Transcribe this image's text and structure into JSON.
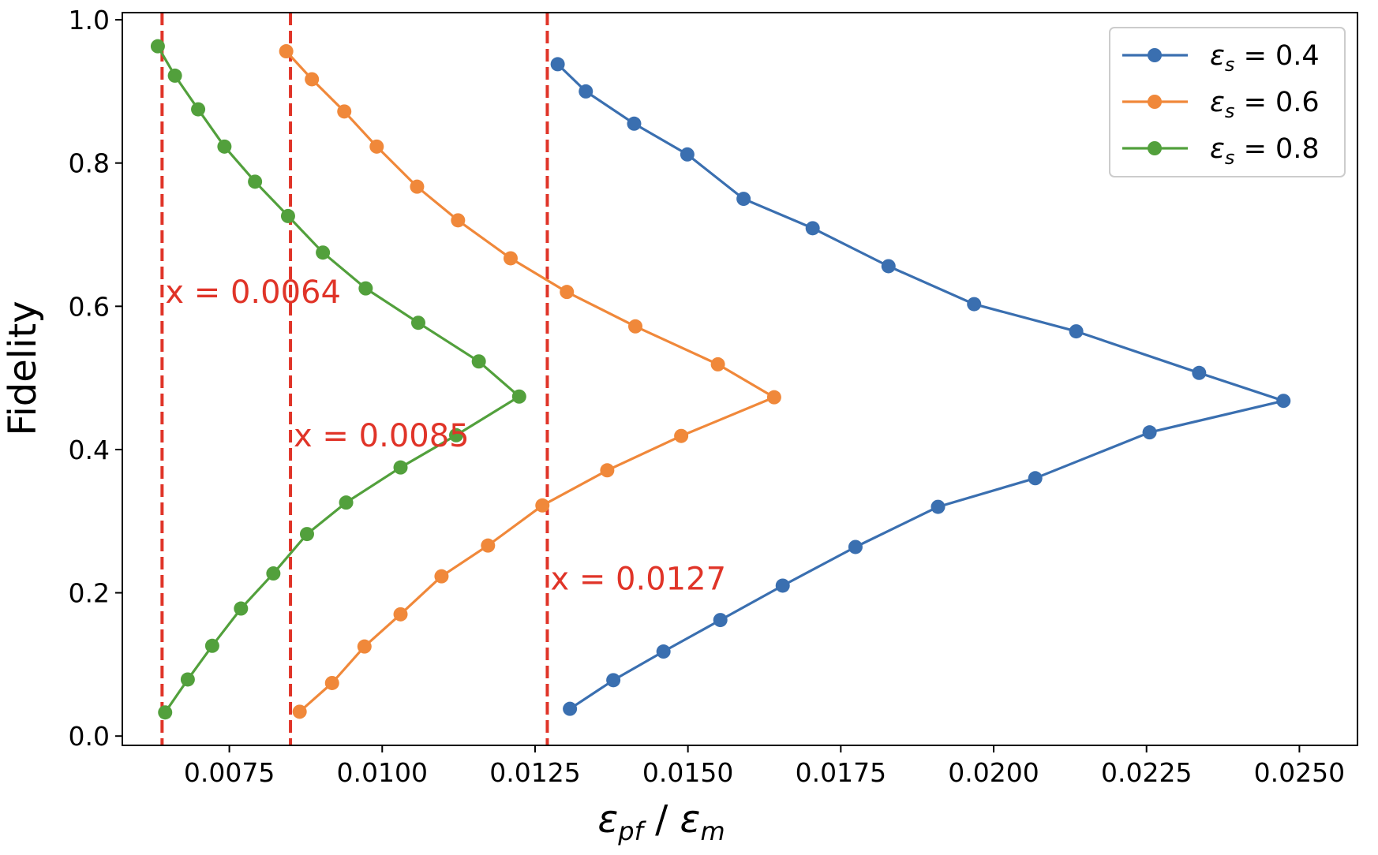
{
  "chart_data": {
    "type": "line",
    "title": "",
    "xlabel": "εpf / εm",
    "xlabel_parts": {
      "sym1": "ε",
      "sub1": "pf",
      "sep": " / ",
      "sym2": "ε",
      "sub2": "m"
    },
    "ylabel": "Fidelity",
    "xlim": [
      0.00575,
      0.02595
    ],
    "ylim": [
      -0.013,
      1.01
    ],
    "xticks": [
      0.0075,
      0.01,
      0.0125,
      0.015,
      0.0175,
      0.02,
      0.0225,
      0.025
    ],
    "xtick_labels": [
      "0.0075",
      "0.0100",
      "0.0125",
      "0.0150",
      "0.0175",
      "0.0200",
      "0.0225",
      "0.0250"
    ],
    "yticks": [
      0.0,
      0.2,
      0.4,
      0.6,
      0.8,
      1.0
    ],
    "ytick_labels": [
      "0.0",
      "0.2",
      "0.4",
      "0.6",
      "0.8",
      "1.0"
    ],
    "grid": false,
    "legend_position": "top-right",
    "series": [
      {
        "name": "εs = 0.4",
        "legend_parts": {
          "sym": "ε",
          "sub": "s",
          "rest": " = 0.4"
        },
        "color": "#3a6fb0",
        "x": [
          0.01287,
          0.01333,
          0.01412,
          0.01499,
          0.01591,
          0.01704,
          0.01828,
          0.01968,
          0.02135,
          0.02336,
          0.02474,
          0.02255,
          0.02068,
          0.01909,
          0.01774,
          0.01655,
          0.01553,
          0.0146,
          0.01378,
          0.01307
        ],
        "y": [
          0.938,
          0.9,
          0.855,
          0.812,
          0.75,
          0.709,
          0.656,
          0.603,
          0.565,
          0.507,
          0.468,
          0.424,
          0.36,
          0.32,
          0.264,
          0.21,
          0.162,
          0.118,
          0.078,
          0.038
        ]
      },
      {
        "name": "εs = 0.6",
        "legend_parts": {
          "sym": "ε",
          "sub": "s",
          "rest": " = 0.6"
        },
        "color": "#f0883a",
        "x": [
          0.00843,
          0.00885,
          0.00938,
          0.00991,
          0.01057,
          0.01124,
          0.0121,
          0.01302,
          0.01414,
          0.01549,
          0.01641,
          0.01489,
          0.01368,
          0.01262,
          0.01173,
          0.01097,
          0.0103,
          0.00971,
          0.00918,
          0.00865
        ],
        "y": [
          0.956,
          0.917,
          0.872,
          0.823,
          0.767,
          0.72,
          0.667,
          0.62,
          0.572,
          0.519,
          0.473,
          0.419,
          0.371,
          0.322,
          0.266,
          0.223,
          0.17,
          0.125,
          0.074,
          0.034
        ]
      },
      {
        "name": "εs = 0.8",
        "legend_parts": {
          "sym": "ε",
          "sub": "s",
          "rest": " = 0.8"
        },
        "color": "#52a03c",
        "x": [
          0.00633,
          0.00661,
          0.00699,
          0.00742,
          0.00792,
          0.00846,
          0.00903,
          0.00973,
          0.01059,
          0.01158,
          0.01224,
          0.01121,
          0.0103,
          0.00941,
          0.00877,
          0.00822,
          0.00769,
          0.00722,
          0.00682,
          0.00645
        ],
        "y": [
          0.963,
          0.922,
          0.875,
          0.823,
          0.774,
          0.726,
          0.675,
          0.625,
          0.577,
          0.523,
          0.474,
          0.42,
          0.375,
          0.326,
          0.282,
          0.227,
          0.178,
          0.126,
          0.079,
          0.033
        ]
      }
    ],
    "vlines": [
      {
        "x": 0.0064,
        "label": "x = 0.0064",
        "label_y": 0.62
      },
      {
        "x": 0.0085,
        "label": "x = 0.0085",
        "label_y": 0.42
      },
      {
        "x": 0.0127,
        "label": "x = 0.0127",
        "label_y": 0.22
      }
    ],
    "vline_color": "#e03428"
  }
}
